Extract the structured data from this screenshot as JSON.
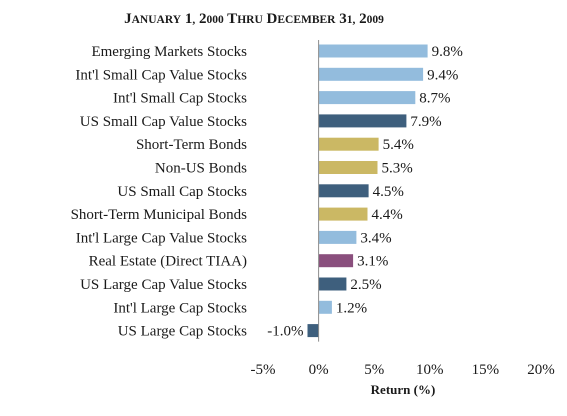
{
  "chart_data": {
    "type": "bar",
    "orientation": "horizontal",
    "title": "January 1, 2000 thru December 31, 2009",
    "xlabel": "Return (%)",
    "ylabel": "",
    "xlim": [
      -5,
      20
    ],
    "x_ticks": [
      -5,
      0,
      5,
      10,
      15,
      20
    ],
    "x_tick_labels": [
      "-5%",
      "0%",
      "5%",
      "10%",
      "15%",
      "20%"
    ],
    "grid": false,
    "legend": "none",
    "categories": [
      "Emerging Markets Stocks",
      "Int'l Small Cap Value Stocks",
      "Int'l Small Cap Stocks",
      "US Small Cap Value Stocks",
      "Short-Term Bonds",
      "Non-US Bonds",
      "US Small Cap Stocks",
      "Short-Term Municipal Bonds",
      "Int'l Large Cap Value Stocks",
      "Real Estate (Direct TIAA)",
      "US Large Cap Value Stocks",
      "Int'l Large Cap Stocks",
      "US Large Cap Stocks"
    ],
    "values": [
      9.8,
      9.4,
      8.7,
      7.9,
      5.4,
      5.3,
      4.5,
      4.4,
      3.4,
      3.1,
      2.5,
      1.2,
      -1.0
    ],
    "value_labels": [
      "9.8%",
      "9.4%",
      "8.7%",
      "7.9%",
      "5.4%",
      "5.3%",
      "4.5%",
      "4.4%",
      "3.4%",
      "3.1%",
      "2.5%",
      "1.2%",
      "-1.0%"
    ],
    "bar_colors": [
      "#93bcdd",
      "#93bcdd",
      "#93bcdd",
      "#3e5f7d",
      "#cbb864",
      "#cbb864",
      "#3e5f7d",
      "#cbb864",
      "#93bcdd",
      "#8a4f7d",
      "#3e5f7d",
      "#93bcdd",
      "#3e5f7d"
    ]
  },
  "colors": {
    "intl_stocks": "#93bcdd",
    "us_stocks": "#3e5f7d",
    "bonds": "#cbb864",
    "real_estate": "#8a4f7d",
    "axis": "#8c8c8c"
  }
}
